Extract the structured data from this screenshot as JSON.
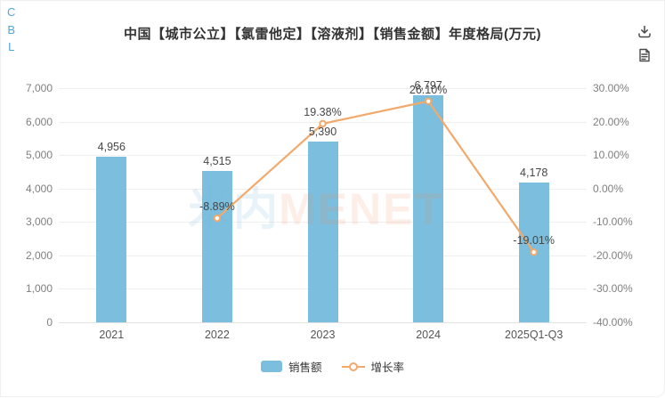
{
  "branding": {
    "letters": [
      "C",
      "B",
      "L"
    ]
  },
  "toolbar": {
    "download_icon": "download-icon",
    "document_icon": "document-icon"
  },
  "watermark": {
    "cn": "米内",
    "en": "MENET"
  },
  "chart_data": {
    "type": "bar",
    "title": "中国【城市公立】【氯雷他定】【溶液剂】【销售金额】年度格局(万元)",
    "categories": [
      "2021",
      "2022",
      "2023",
      "2024",
      "2025Q1-Q3"
    ],
    "series": [
      {
        "name": "销售额",
        "type": "bar",
        "axis": "left",
        "values": [
          4956,
          4515,
          5390,
          6797,
          4178
        ],
        "labels": [
          "4,956",
          "4,515",
          "5,390",
          "6,797",
          "4,178"
        ]
      },
      {
        "name": "增长率",
        "type": "line",
        "axis": "right",
        "values": [
          null,
          -8.89,
          19.38,
          26.1,
          -19.01
        ],
        "labels": [
          "",
          "-8.89%",
          "19.38%",
          "26.10%",
          "-19.01%"
        ]
      }
    ],
    "left_axis": {
      "min": 0,
      "max": 7000,
      "step": 1000,
      "tick_labels": [
        "0",
        "1,000",
        "2,000",
        "3,000",
        "4,000",
        "5,000",
        "6,000",
        "7,000"
      ]
    },
    "right_axis": {
      "min": -40,
      "max": 30,
      "step": 10,
      "tick_labels": [
        "-40.00%",
        "-30.00%",
        "-20.00%",
        "-10.00%",
        "0.00%",
        "10.00%",
        "20.00%",
        "30.00%"
      ]
    },
    "legend": [
      {
        "label": "销售额",
        "type": "bar"
      },
      {
        "label": "增长率",
        "type": "line"
      }
    ],
    "grid": true,
    "legend_position": "bottom"
  },
  "colors": {
    "bar": "#7CBEDD",
    "line": "#F2A96B",
    "brand": "#4FA8DB",
    "icon": "#4a4a4a",
    "grid": "#EFEFEF",
    "axis_line": "#E2E2E2",
    "axis_text": "#7f7f7f",
    "label_text": "#474747",
    "title_text": "#333333"
  }
}
